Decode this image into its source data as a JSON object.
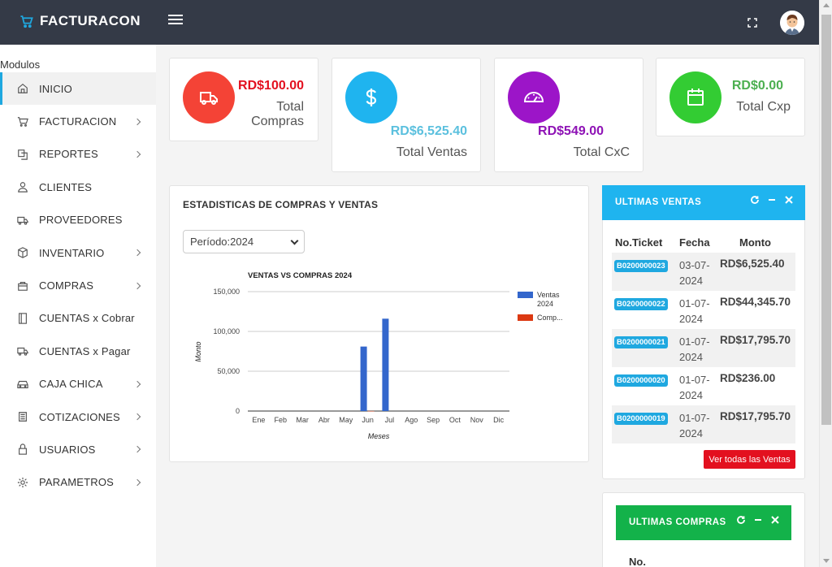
{
  "app": {
    "brand": "FACTURACON"
  },
  "sidebar": {
    "heading": "Modulos",
    "items": [
      {
        "label": "INICIO",
        "icon": "home-icon",
        "active": true,
        "submenu": false
      },
      {
        "label": "FACTURACION",
        "icon": "cart-icon",
        "active": false,
        "submenu": true
      },
      {
        "label": "REPORTES",
        "icon": "copy-icon",
        "active": false,
        "submenu": true
      },
      {
        "label": "CLIENTES",
        "icon": "user-icon",
        "active": false,
        "submenu": false
      },
      {
        "label": "PROVEEDORES",
        "icon": "truck-icon",
        "active": false,
        "submenu": false
      },
      {
        "label": "INVENTARIO",
        "icon": "box-icon",
        "active": false,
        "submenu": true
      },
      {
        "label": "COMPRAS",
        "icon": "bag-icon",
        "active": false,
        "submenu": true
      },
      {
        "label": "CUENTAS x Cobrar",
        "icon": "book-icon",
        "active": false,
        "submenu": false
      },
      {
        "label": "CUENTAS x Pagar",
        "icon": "truck-icon",
        "active": false,
        "submenu": false
      },
      {
        "label": "CAJA CHICA",
        "icon": "car-icon",
        "active": false,
        "submenu": true
      },
      {
        "label": "COTIZACIONES",
        "icon": "list-icon",
        "active": false,
        "submenu": true
      },
      {
        "label": "USUARIOS",
        "icon": "lock-icon",
        "active": false,
        "submenu": true
      },
      {
        "label": "PARAMETROS",
        "icon": "gear-icon",
        "active": false,
        "submenu": true
      }
    ]
  },
  "stats": [
    {
      "value": "RD$100.00",
      "label_line1": "Total",
      "label_line2": "Compras",
      "color": "#e3101f",
      "circle": "#f44336"
    },
    {
      "value": "RD$6,525.40",
      "label_line1": "Total Ventas",
      "label_line2": "",
      "color": "#5bc0de",
      "circle": "#1fb4ef"
    },
    {
      "value": "RD$549.00",
      "label_line1": "Total CxC",
      "label_line2": "",
      "color": "#8e12b5",
      "circle": "#9c15c8"
    },
    {
      "value": "RD$0.00",
      "label_line1": "Total Cxp",
      "label_line2": "",
      "color": "#4caf50",
      "circle": "#33cc33"
    }
  ],
  "stats_panel": {
    "title": "ESTADISTICAS DE COMPRAS Y VENTAS",
    "period_select": "Período:2024"
  },
  "chart_data": {
    "type": "bar",
    "title": "VENTAS VS COMPRAS 2024",
    "xlabel": "Meses",
    "ylabel": "Monto",
    "categories": [
      "Ene",
      "Feb",
      "Mar",
      "Abr",
      "May",
      "Jun",
      "Jul",
      "Ago",
      "Sep",
      "Oct",
      "Nov",
      "Dic"
    ],
    "series": [
      {
        "name": "Ventas 2024",
        "color": "#3366cc",
        "values": [
          0,
          0,
          0,
          0,
          0,
          81000,
          116000,
          0,
          0,
          0,
          0,
          0
        ]
      },
      {
        "name": "Comp...",
        "color": "#dc3912",
        "values": [
          0,
          0,
          0,
          0,
          0,
          100,
          0,
          0,
          0,
          0,
          0,
          0
        ]
      }
    ],
    "ylim": [
      0,
      150000
    ],
    "yticks": [
      "150,000",
      "100,000",
      "50,000",
      "0"
    ],
    "legend": "right",
    "grid": true
  },
  "ventas_panel": {
    "title": "ULTIMAS VENTAS",
    "columns": [
      "No.Ticket",
      "Fecha",
      "Monto"
    ],
    "rows": [
      {
        "ticket": "B0200000023",
        "date": "03-07-2024",
        "amount": "RD$6,525.40"
      },
      {
        "ticket": "B0200000022",
        "date": "01-07-2024",
        "amount": "RD$44,345.70"
      },
      {
        "ticket": "B0200000021",
        "date": "01-07-2024",
        "amount": "RD$17,795.70"
      },
      {
        "ticket": "B0200000020",
        "date": "01-07-2024",
        "amount": "RD$236.00"
      },
      {
        "ticket": "B0200000019",
        "date": "01-07-2024",
        "amount": "RD$17,795.70"
      }
    ],
    "button": "Ver todas las Ventas",
    "header_color": "#1fb4ef"
  },
  "compras_panel": {
    "title": "ULTIMAS COMPRAS",
    "first_column": "No.",
    "header_color": "#13b24a"
  }
}
